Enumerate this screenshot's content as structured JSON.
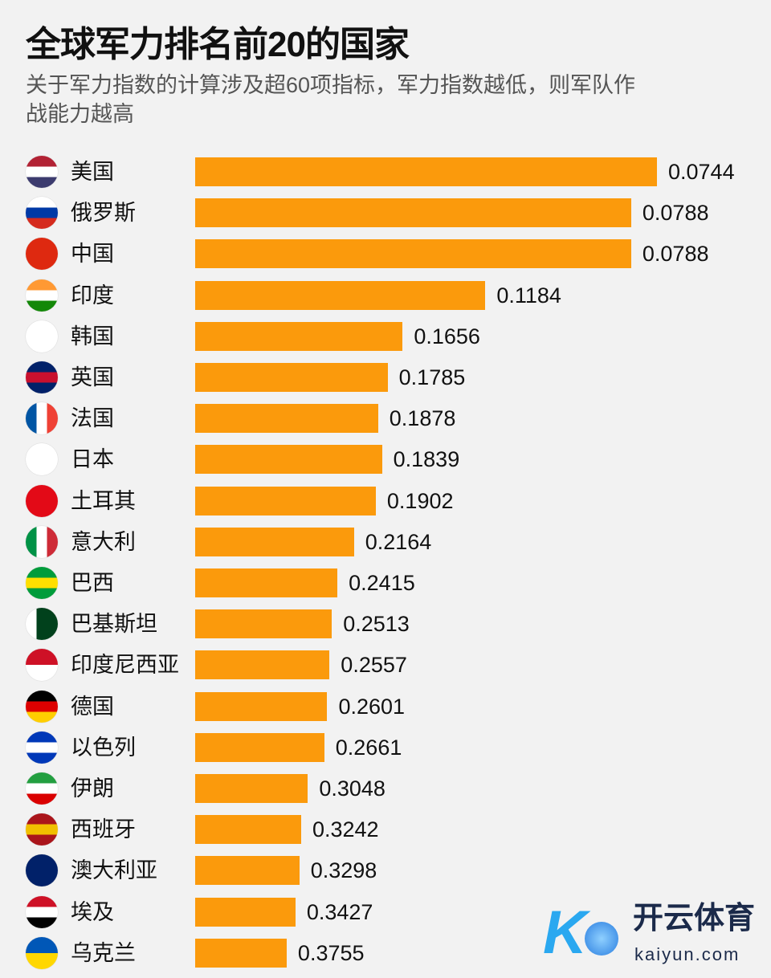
{
  "chart_data": {
    "type": "bar",
    "orientation": "horizontal",
    "title": "全球军力排名前20的国家",
    "subtitle": "关于军力指数的计算涉及超60项指标，军力指数越低，则军队作战能力越高",
    "xlabel": "",
    "ylabel": "",
    "grid": false,
    "bar_length_encoding": "inverse of value",
    "bar_color": "#fb9a0c",
    "categories": [
      "美国",
      "俄罗斯",
      "中国",
      "印度",
      "韩国",
      "英国",
      "法国",
      "日本",
      "土耳其",
      "意大利",
      "巴西",
      "巴基斯坦",
      "印度尼西亚",
      "德国",
      "以色列",
      "伊朗",
      "西班牙",
      "澳大利亚",
      "埃及",
      "乌克兰"
    ],
    "values": [
      0.0744,
      0.0788,
      0.0788,
      0.1184,
      0.1656,
      0.1785,
      0.1878,
      0.1839,
      0.1902,
      0.2164,
      0.2415,
      0.2513,
      0.2557,
      0.2601,
      0.2661,
      0.3048,
      0.3242,
      0.3298,
      0.3427,
      0.3755
    ],
    "value_labels": [
      "0.0744",
      "0.0788",
      "0.0788",
      "0.1184",
      "0.1656",
      "0.1785",
      "0.1878",
      "0.1839",
      "0.1902",
      "0.2164",
      "0.2415",
      "0.2513",
      "0.2557",
      "0.2601",
      "0.2661",
      "0.3048",
      "0.3242",
      "0.3298",
      "0.3427",
      "0.3755"
    ],
    "flags": [
      {
        "icon": "us-flag-icon",
        "colors": [
          "#b22234",
          "#ffffff",
          "#3c3b6e"
        ],
        "dir": "h"
      },
      {
        "icon": "russia-flag-icon",
        "colors": [
          "#ffffff",
          "#0039a6",
          "#d52b1e"
        ],
        "dir": "h"
      },
      {
        "icon": "china-flag-icon",
        "colors": [
          "#de2910"
        ],
        "dir": "h"
      },
      {
        "icon": "india-flag-icon",
        "colors": [
          "#ff9933",
          "#ffffff",
          "#138808"
        ],
        "dir": "h"
      },
      {
        "icon": "korea-flag-icon",
        "colors": [
          "#ffffff"
        ],
        "dir": "h"
      },
      {
        "icon": "uk-flag-icon",
        "colors": [
          "#012169",
          "#c8102e",
          "#012169"
        ],
        "dir": "h"
      },
      {
        "icon": "france-flag-icon",
        "colors": [
          "#0055a4",
          "#ffffff",
          "#ef4135"
        ],
        "dir": "v"
      },
      {
        "icon": "japan-flag-icon",
        "colors": [
          "#ffffff"
        ],
        "dir": "h"
      },
      {
        "icon": "turkey-flag-icon",
        "colors": [
          "#e30a17"
        ],
        "dir": "h"
      },
      {
        "icon": "italy-flag-icon",
        "colors": [
          "#009246",
          "#ffffff",
          "#ce2b37"
        ],
        "dir": "v"
      },
      {
        "icon": "brazil-flag-icon",
        "colors": [
          "#009c3b",
          "#ffdf00",
          "#009c3b"
        ],
        "dir": "h"
      },
      {
        "icon": "pakistan-flag-icon",
        "colors": [
          "#ffffff",
          "#01411c",
          "#01411c"
        ],
        "dir": "v"
      },
      {
        "icon": "indonesia-flag-icon",
        "colors": [
          "#ce1126",
          "#ffffff"
        ],
        "dir": "h"
      },
      {
        "icon": "germany-flag-icon",
        "colors": [
          "#000000",
          "#dd0000",
          "#ffce00"
        ],
        "dir": "h"
      },
      {
        "icon": "israel-flag-icon",
        "colors": [
          "#0038b8",
          "#ffffff",
          "#0038b8"
        ],
        "dir": "h"
      },
      {
        "icon": "iran-flag-icon",
        "colors": [
          "#239f40",
          "#ffffff",
          "#da0000"
        ],
        "dir": "h"
      },
      {
        "icon": "spain-flag-icon",
        "colors": [
          "#aa151b",
          "#f1bf00",
          "#aa151b"
        ],
        "dir": "h"
      },
      {
        "icon": "australia-flag-icon",
        "colors": [
          "#012169"
        ],
        "dir": "h"
      },
      {
        "icon": "egypt-flag-icon",
        "colors": [
          "#ce1126",
          "#ffffff",
          "#000000"
        ],
        "dir": "h"
      },
      {
        "icon": "ukraine-flag-icon",
        "colors": [
          "#0057b7",
          "#ffd700"
        ],
        "dir": "h"
      }
    ]
  },
  "watermark": {
    "brand_cn": "开云体育",
    "brand_en": "kaiyun.com",
    "logo_letter": "K"
  }
}
